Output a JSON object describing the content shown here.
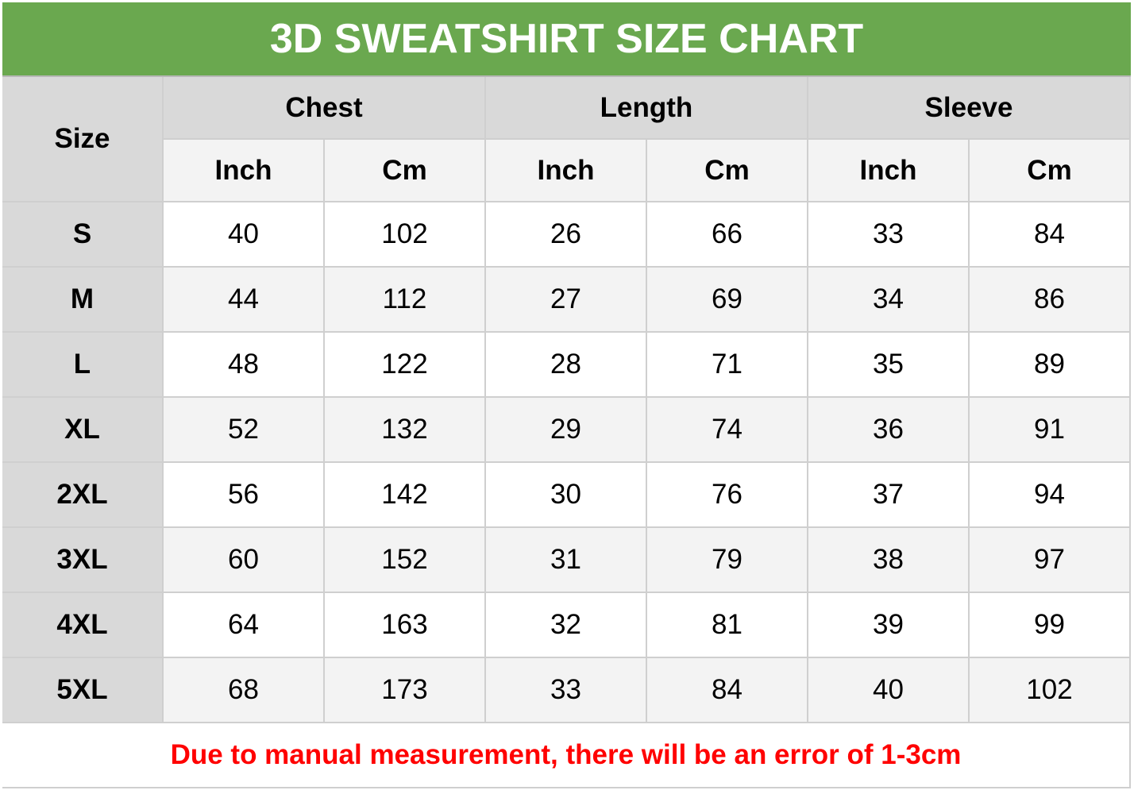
{
  "title": "3D SWEATSHIRT SIZE CHART",
  "header": {
    "size": "Size",
    "groups": [
      "Chest",
      "Length",
      "Sleeve"
    ],
    "units": [
      "Inch",
      "Cm",
      "Inch",
      "Cm",
      "Inch",
      "Cm"
    ]
  },
  "rows": [
    {
      "size": "S",
      "values": [
        "40",
        "102",
        "26",
        "66",
        "33",
        "84"
      ]
    },
    {
      "size": "M",
      "values": [
        "44",
        "112",
        "27",
        "69",
        "34",
        "86"
      ]
    },
    {
      "size": "L",
      "values": [
        "48",
        "122",
        "28",
        "71",
        "35",
        "89"
      ]
    },
    {
      "size": "XL",
      "values": [
        "52",
        "132",
        "29",
        "74",
        "36",
        "91"
      ]
    },
    {
      "size": "2XL",
      "values": [
        "56",
        "142",
        "30",
        "76",
        "37",
        "94"
      ]
    },
    {
      "size": "3XL",
      "values": [
        "60",
        "152",
        "31",
        "79",
        "38",
        "97"
      ]
    },
    {
      "size": "4XL",
      "values": [
        "64",
        "163",
        "32",
        "81",
        "39",
        "99"
      ]
    },
    {
      "size": "5XL",
      "values": [
        "68",
        "173",
        "33",
        "84",
        "40",
        "102"
      ]
    }
  ],
  "note": "Due to manual measurement, there will be an error of 1-3cm",
  "colors": {
    "title_bg": "#6aa84f",
    "note_text": "#ff0000",
    "header_bg": "#d9d9d9",
    "alt_row": "#f3f3f3"
  }
}
